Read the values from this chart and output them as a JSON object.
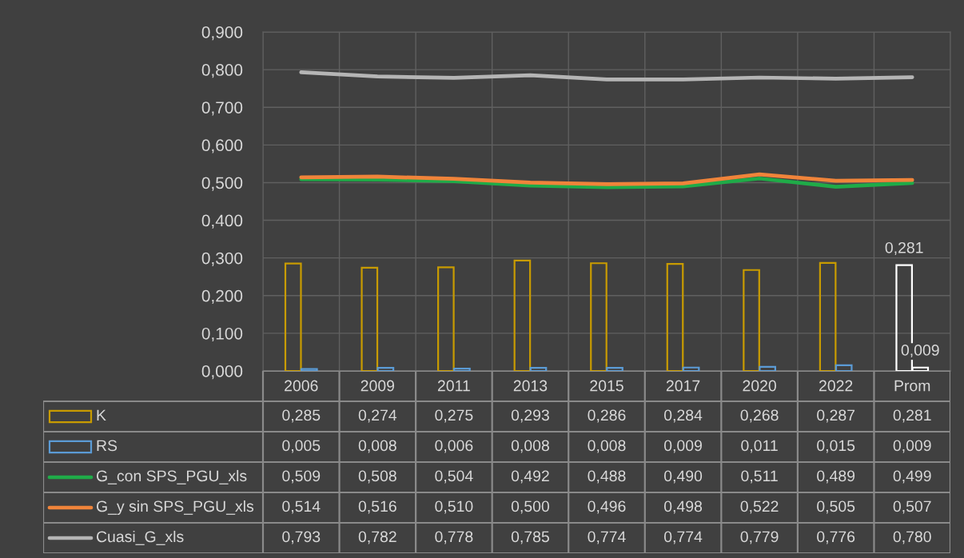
{
  "chart_data": {
    "type": "bar",
    "categories": [
      "2006",
      "2009",
      "2011",
      "2013",
      "2015",
      "2017",
      "2020",
      "2022",
      "Prom"
    ],
    "series": [
      {
        "name": "K",
        "color": "#c89b00",
        "colors": [
          "#c89b00",
          "#c89b00",
          "#c89b00",
          "#c89b00",
          "#c89b00",
          "#c89b00",
          "#c89b00",
          "#c89b00",
          "#ffffff"
        ],
        "values": [
          0.285,
          0.274,
          0.275,
          0.293,
          0.286,
          0.284,
          0.268,
          0.287,
          0.281
        ],
        "value_labels": [
          "0,285",
          "0,274",
          "0,275",
          "0,293",
          "0,286",
          "0,284",
          "0,268",
          "0,287",
          "0,281"
        ]
      },
      {
        "name": "RS",
        "color": "#5b9bd5",
        "colors": [
          "#5b9bd5",
          "#5b9bd5",
          "#5b9bd5",
          "#5b9bd5",
          "#5b9bd5",
          "#5b9bd5",
          "#5b9bd5",
          "#5b9bd5",
          "#ffffff"
        ],
        "values": [
          0.005,
          0.008,
          0.006,
          0.008,
          0.008,
          0.009,
          0.011,
          0.015,
          0.009
        ],
        "value_labels": [
          "0,005",
          "0,008",
          "0,006",
          "0,008",
          "0,008",
          "0,009",
          "0,011",
          "0,015",
          "0,009"
        ]
      },
      {
        "name": "G_con SPS_PGU_xls",
        "type": "line",
        "color": "#1fab48",
        "values": [
          0.509,
          0.508,
          0.504,
          0.492,
          0.488,
          0.49,
          0.511,
          0.489,
          0.499
        ],
        "value_labels": [
          "0,509",
          "0,508",
          "0,504",
          "0,492",
          "0,488",
          "0,490",
          "0,511",
          "0,489",
          "0,499"
        ]
      },
      {
        "name": "G_y sin SPS_PGU_xls",
        "type": "line",
        "color": "#f0843a",
        "values": [
          0.514,
          0.516,
          0.51,
          0.5,
          0.496,
          0.498,
          0.522,
          0.505,
          0.507
        ],
        "value_labels": [
          "0,514",
          "0,516",
          "0,510",
          "0,500",
          "0,496",
          "0,498",
          "0,522",
          "0,505",
          "0,507"
        ]
      },
      {
        "name": "Cuasi_G_xls",
        "type": "line",
        "color": "#b5b5b5",
        "values": [
          0.793,
          0.782,
          0.778,
          0.785,
          0.774,
          0.774,
          0.779,
          0.776,
          0.78
        ],
        "value_labels": [
          "0,793",
          "0,782",
          "0,778",
          "0,785",
          "0,774",
          "0,774",
          "0,779",
          "0,776",
          "0,780"
        ]
      }
    ],
    "ylim": [
      0,
      0.9
    ],
    "yticks": [
      {
        "value": 0,
        "label": "0,000"
      },
      {
        "value": 0.1,
        "label": "0,100"
      },
      {
        "value": 0.2,
        "label": "0,200"
      },
      {
        "value": 0.3,
        "label": "0,300"
      },
      {
        "value": 0.4,
        "label": "0,400"
      },
      {
        "value": 0.5,
        "label": "0,500"
      },
      {
        "value": 0.6,
        "label": "0,600"
      },
      {
        "value": 0.7,
        "label": "0,700"
      },
      {
        "value": 0.8,
        "label": "0,800"
      },
      {
        "value": 0.9,
        "label": "0,900"
      }
    ],
    "grid": true,
    "legend": "bottom",
    "line_style": "solid",
    "annotations": [
      {
        "text": "0,281",
        "x": "Prom",
        "y": 0.281
      },
      {
        "text": "0,009",
        "x": "Prom",
        "y": 0.009
      }
    ]
  }
}
